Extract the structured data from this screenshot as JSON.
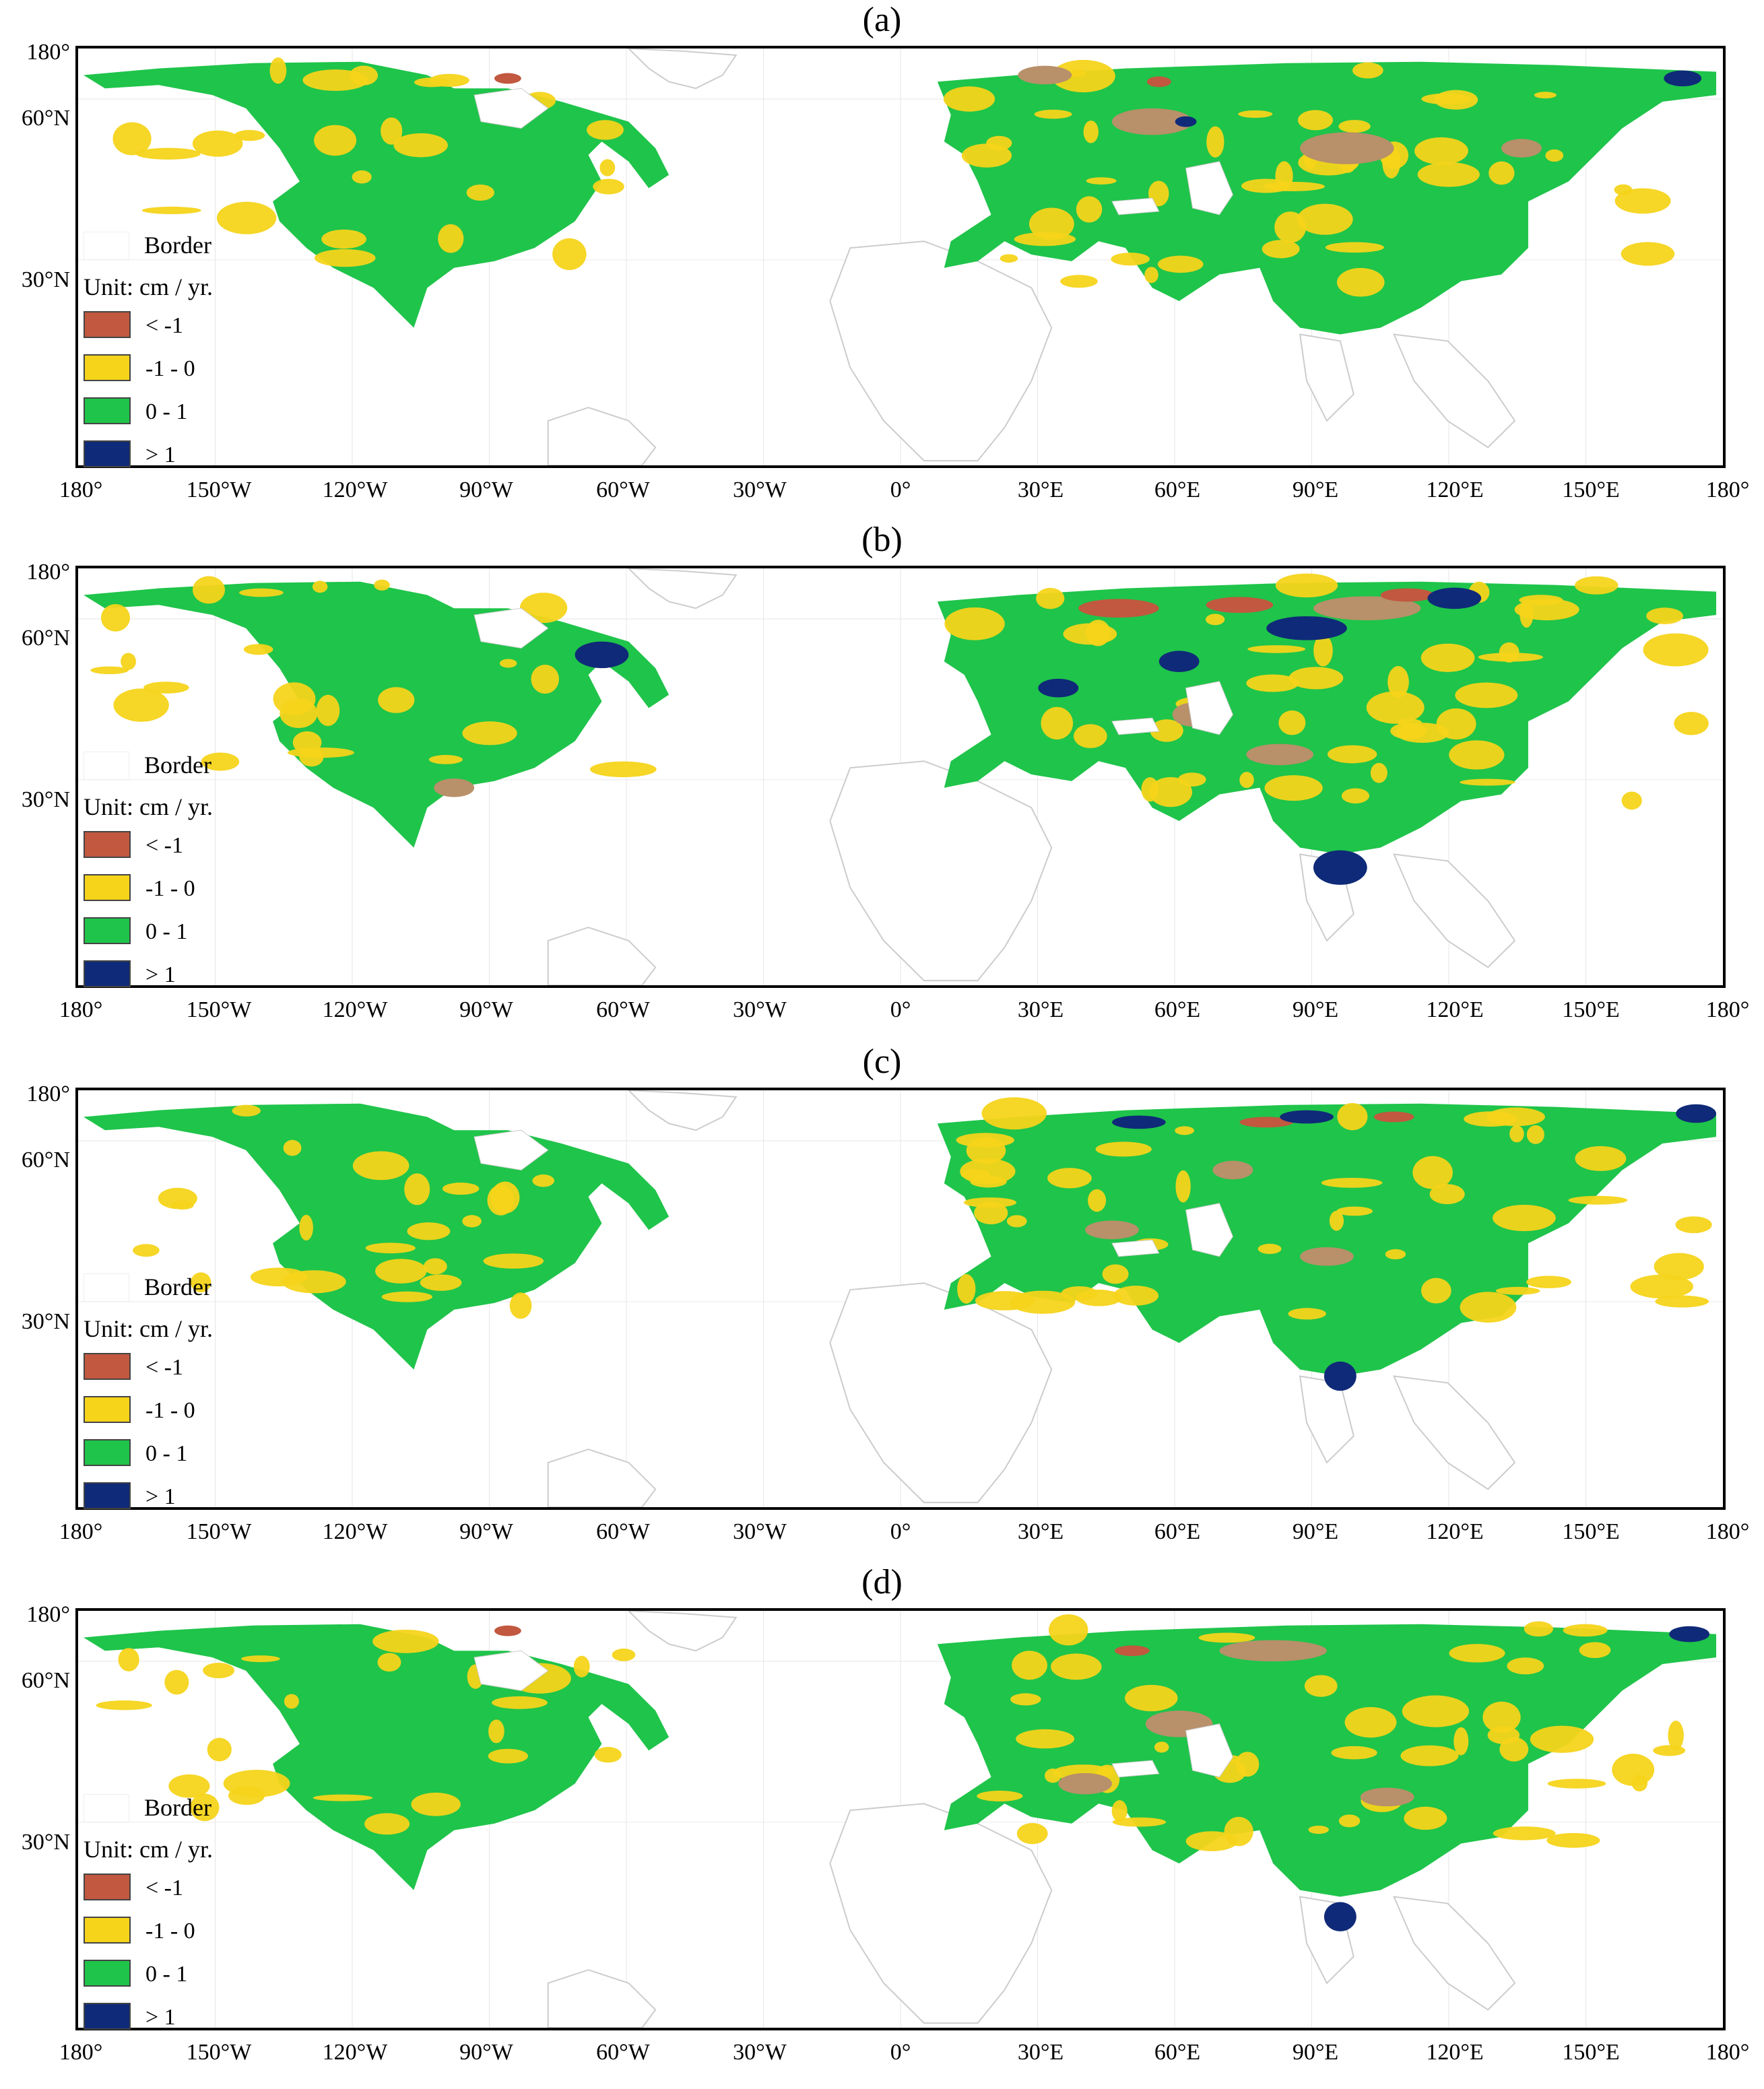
{
  "figure": {
    "panels": [
      {
        "label": "(a)"
      },
      {
        "label": "(b)"
      },
      {
        "label": "(c)"
      },
      {
        "label": "(d)"
      }
    ],
    "lat_labels": [
      "180°",
      "60°N",
      "30°N"
    ],
    "lon_labels": [
      "180°",
      "150°W",
      "120°W",
      "90°W",
      "60°W",
      "30°W",
      "0°",
      "30°E",
      "60°E",
      "90°E",
      "120°E",
      "150°E",
      "180°"
    ],
    "legend": {
      "border_label": "Border",
      "unit_label": "Unit: cm / yr.",
      "items": [
        {
          "label": "< -1",
          "color": "#c1583f"
        },
        {
          "label": "-1 - 0",
          "color": "#f5d41a"
        },
        {
          "label": "0 - 1",
          "color": "#1fc44a"
        },
        {
          "label": "> 1",
          "color": "#0f2a78"
        }
      ]
    },
    "colors": {
      "yellow": "#f5d41a",
      "green": "#1fc44a",
      "navy": "#0f2a78",
      "red": "#c1583f",
      "brown": "#b8906a",
      "border_line": "#cccccc"
    }
  }
}
